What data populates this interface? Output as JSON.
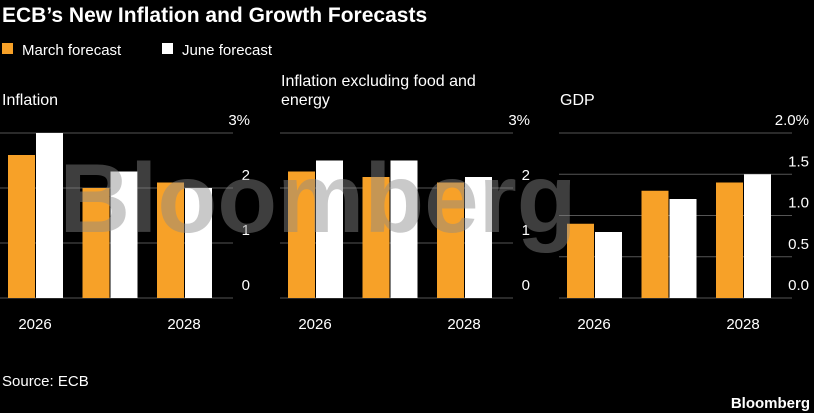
{
  "title": "ECB’s New Inflation and Growth Forecasts",
  "chart_data": [
    {
      "type": "bar",
      "title": "Inflation",
      "categories": [
        "2026",
        null,
        "2028"
      ],
      "series": [
        {
          "name": "March forecast",
          "color": "#f7a128",
          "values": [
            2.6,
            2.0,
            2.1
          ]
        },
        {
          "name": "June forecast",
          "color": "#ffffff",
          "values": [
            3.0,
            2.3,
            2.0
          ]
        }
      ],
      "ylim": [
        0,
        3
      ],
      "yticks": [
        0,
        1,
        2,
        {
          "value": 3,
          "label": "3%"
        }
      ],
      "grid": true
    },
    {
      "type": "bar",
      "title": "Inflation excluding food and energy",
      "categories": [
        "2026",
        null,
        "2028"
      ],
      "series": [
        {
          "color": "#f7a128",
          "values": [
            2.3,
            2.2,
            2.1
          ]
        },
        {
          "color": "#ffffff",
          "values": [
            2.5,
            2.5,
            2.2
          ]
        }
      ],
      "ylim": [
        0,
        3
      ],
      "yticks": [
        0,
        1,
        2,
        {
          "value": 3,
          "label": "3%"
        }
      ],
      "grid": true
    },
    {
      "type": "bar",
      "title": "GDP",
      "categories": [
        "2026",
        null,
        "2028"
      ],
      "series": [
        {
          "color": "#f7a128",
          "values": [
            0.9,
            1.3,
            1.4
          ]
        },
        {
          "color": "#ffffff",
          "values": [
            0.8,
            1.2,
            1.5
          ]
        }
      ],
      "ylim": [
        0,
        2
      ],
      "yticks": [
        {
          "value": 0,
          "label": "0.0"
        },
        0.5,
        {
          "value": 1,
          "label": "1.0"
        },
        1.5,
        {
          "value": 2,
          "label": "2.0%"
        }
      ],
      "grid": true
    }
  ],
  "watermark": "Bloomberg",
  "source": "Source: ECB",
  "footer": "Bloomberg"
}
